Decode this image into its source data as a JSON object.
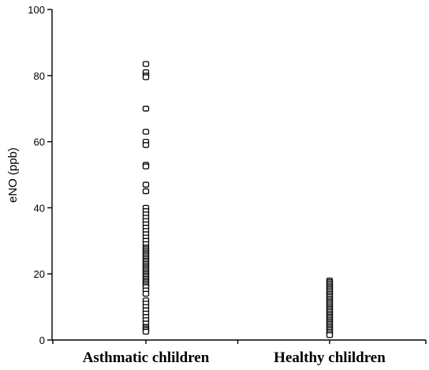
{
  "chart_data": {
    "type": "scatter",
    "title": "",
    "xlabel": "",
    "ylabel": "eNO (ppb)",
    "categories": [
      "Asthmatic chlildren",
      "Healthy chlildren"
    ],
    "ylim": [
      0,
      100
    ],
    "yticks": [
      0,
      20,
      40,
      60,
      80,
      100
    ],
    "grid": false,
    "series": [
      {
        "category": "Asthmatic chlildren",
        "values": [
          83.5,
          81,
          80,
          79.5,
          70,
          63,
          60,
          59,
          53,
          52.5,
          47,
          45,
          40,
          39,
          38,
          37,
          36,
          35,
          34,
          33,
          32,
          31,
          30,
          29,
          28,
          27.5,
          27,
          26.5,
          26,
          25.5,
          25,
          24.5,
          24,
          23.5,
          23,
          22.5,
          22,
          21.5,
          21,
          20.5,
          20,
          19.5,
          19,
          18.5,
          18,
          17.5,
          17,
          16.5,
          16,
          15,
          14,
          12,
          11,
          10,
          9,
          8,
          7,
          6,
          5,
          4,
          3.5,
          3,
          2.5
        ]
      },
      {
        "category": "Healthy chlildren",
        "values": [
          18,
          17.5,
          17,
          16.5,
          16,
          15.5,
          15,
          14.5,
          14,
          13.5,
          13,
          12.5,
          12,
          11.5,
          11,
          10.5,
          10,
          9.5,
          9,
          8.5,
          8,
          7.5,
          7,
          6.5,
          6,
          5.5,
          5,
          4.5,
          4,
          3.5,
          3,
          2.5,
          2,
          1.5
        ]
      }
    ]
  }
}
